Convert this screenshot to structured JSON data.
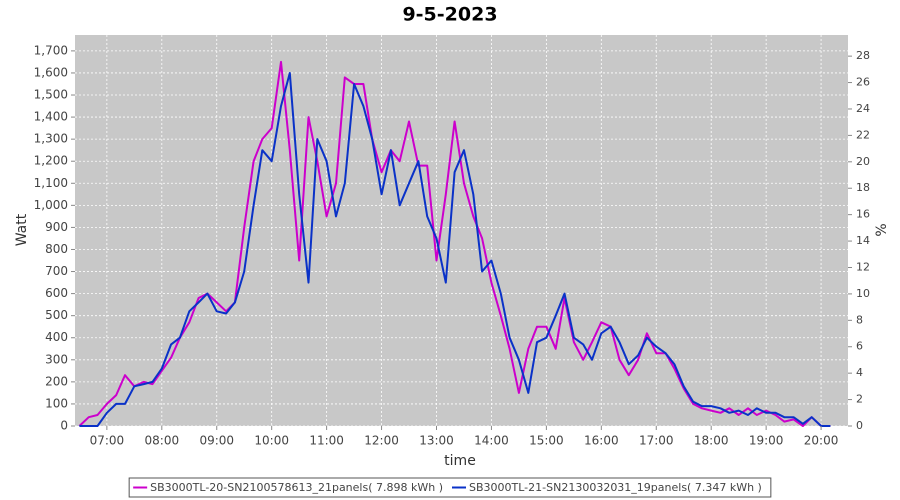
{
  "chart_data": {
    "type": "line",
    "title": "9-5-2023",
    "xlabel": "time",
    "ylabel": "Watt",
    "y2label": "%",
    "grid": true,
    "xlim": [
      6.42,
      20.49
    ],
    "xticks": [
      {
        "value": 7,
        "label": "07:00"
      },
      {
        "value": 8,
        "label": "08:00"
      },
      {
        "value": 9,
        "label": "09:00"
      },
      {
        "value": 10,
        "label": "10:00"
      },
      {
        "value": 11,
        "label": "11:00"
      },
      {
        "value": 12,
        "label": "12:00"
      },
      {
        "value": 13,
        "label": "13:00"
      },
      {
        "value": 14,
        "label": "14:00"
      },
      {
        "value": 15,
        "label": "15:00"
      },
      {
        "value": 16,
        "label": "16:00"
      },
      {
        "value": 17,
        "label": "17:00"
      },
      {
        "value": 18,
        "label": "18:00"
      },
      {
        "value": 19,
        "label": "19:00"
      },
      {
        "value": 20,
        "label": "20:00"
      }
    ],
    "ylim": [
      0,
      1772
    ],
    "yticks": [
      0,
      100,
      200,
      300,
      400,
      500,
      600,
      700,
      800,
      900,
      {
        "value": 1000,
        "label": "1,000"
      },
      {
        "value": 1100,
        "label": "1,100"
      },
      {
        "value": 1200,
        "label": "1,200"
      },
      {
        "value": 1300,
        "label": "1,300"
      },
      {
        "value": 1400,
        "label": "1,400"
      },
      {
        "value": 1500,
        "label": "1,500"
      },
      {
        "value": 1600,
        "label": "1,600"
      },
      {
        "value": 1700,
        "label": "1,700"
      }
    ],
    "y2lim": [
      0,
      29.6
    ],
    "y2ticks": [
      0,
      2,
      4,
      6,
      8,
      10,
      12,
      14,
      16,
      18,
      20,
      22,
      24,
      26,
      28
    ],
    "x": [
      6.5,
      6.67,
      6.83,
      7,
      7.17,
      7.33,
      7.5,
      7.67,
      7.83,
      8,
      8.17,
      8.33,
      8.5,
      8.67,
      8.83,
      9,
      9.17,
      9.33,
      9.5,
      9.67,
      9.83,
      10,
      10.17,
      10.33,
      10.5,
      10.67,
      10.83,
      11,
      11.17,
      11.33,
      11.5,
      11.67,
      11.83,
      12,
      12.17,
      12.33,
      12.5,
      12.67,
      12.83,
      13,
      13.17,
      13.33,
      13.5,
      13.67,
      13.83,
      14,
      14.17,
      14.33,
      14.5,
      14.67,
      14.83,
      15,
      15.17,
      15.33,
      15.5,
      15.67,
      15.83,
      16,
      16.17,
      16.33,
      16.5,
      16.67,
      16.83,
      17,
      17.17,
      17.33,
      17.5,
      17.67,
      17.83,
      18,
      18.17,
      18.33,
      18.5,
      18.67,
      18.83,
      19,
      19.17,
      19.33,
      19.5,
      19.67,
      19.83,
      20,
      20.17
    ],
    "series": [
      {
        "name": "SB3000TL-20-SN2100578613_21panels( 7.898 kWh )",
        "color": "#cc00cc",
        "values": [
          0,
          40,
          50,
          100,
          140,
          230,
          180,
          200,
          190,
          250,
          310,
          400,
          470,
          580,
          600,
          560,
          520,
          560,
          900,
          1200,
          1300,
          1350,
          1650,
          1250,
          750,
          1400,
          1200,
          950,
          1100,
          1580,
          1550,
          1550,
          1300,
          1150,
          1250,
          1200,
          1380,
          1180,
          1180,
          750,
          1050,
          1380,
          1100,
          950,
          850,
          650,
          500,
          350,
          150,
          350,
          450,
          450,
          350,
          580,
          380,
          300,
          380,
          470,
          450,
          300,
          230,
          300,
          420,
          330,
          330,
          260,
          170,
          100,
          80,
          70,
          60,
          80,
          50,
          80,
          50,
          70,
          50,
          20,
          30,
          0,
          40,
          0,
          0
        ]
      },
      {
        "name": "SB3000TL-21-SN2130032031_19panels( 7.347 kWh )",
        "color": "#0a32c8",
        "values": [
          0,
          0,
          0,
          60,
          100,
          100,
          180,
          190,
          200,
          260,
          370,
          400,
          520,
          560,
          600,
          520,
          510,
          560,
          700,
          1000,
          1250,
          1200,
          1450,
          1600,
          1050,
          650,
          1300,
          1200,
          950,
          1100,
          1550,
          1450,
          1300,
          1050,
          1250,
          1000,
          1100,
          1200,
          950,
          850,
          650,
          1150,
          1250,
          1050,
          700,
          750,
          600,
          400,
          300,
          150,
          380,
          400,
          500,
          600,
          400,
          370,
          300,
          420,
          450,
          380,
          280,
          320,
          400,
          360,
          330,
          280,
          180,
          110,
          90,
          90,
          80,
          60,
          70,
          50,
          80,
          60,
          60,
          40,
          40,
          10,
          40,
          0,
          0
        ]
      }
    ]
  }
}
